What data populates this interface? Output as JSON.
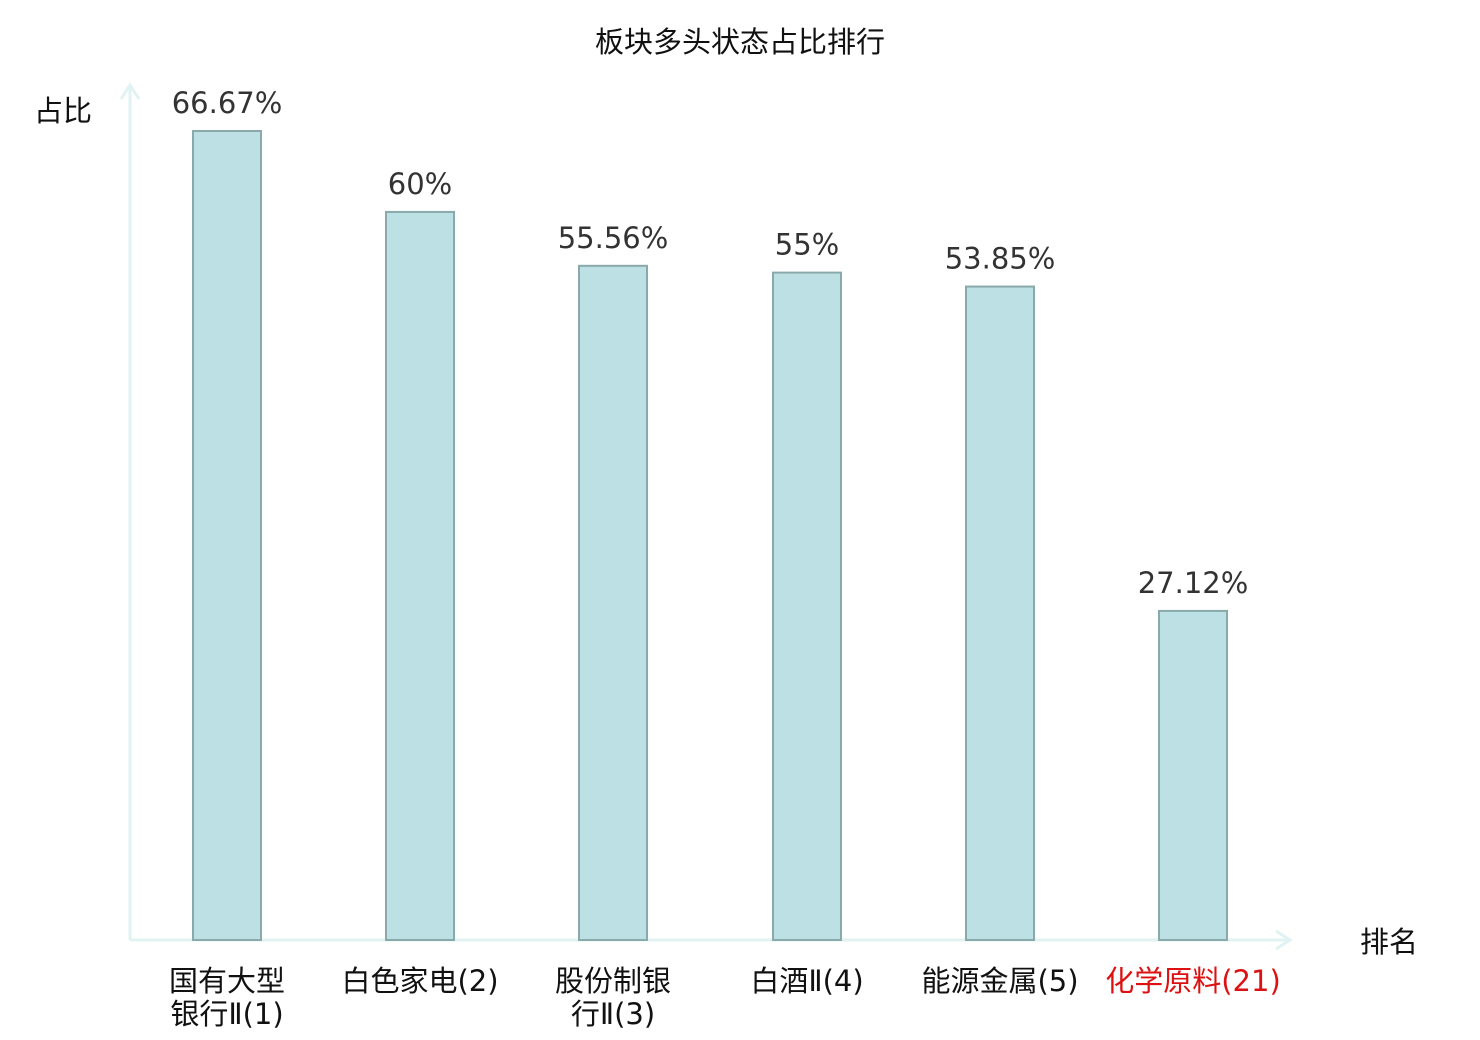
{
  "chart_data": {
    "type": "bar",
    "title": "板块多头状态占比排行",
    "ylabel": "占比",
    "xlabel": "排名",
    "categories": [
      "国有大型银行Ⅱ(1)",
      "白色家电(2)",
      "股份制银行Ⅱ(3)",
      "白酒Ⅱ(4)",
      "能源金属(5)",
      "化学原料(21)"
    ],
    "values": [
      66.67,
      60,
      55.56,
      55,
      53.85,
      27.12
    ],
    "data_labels": [
      "66.67%",
      "60%",
      "55.56%",
      "55%",
      "53.85%",
      "27.12%"
    ],
    "ylim": [
      0,
      70
    ],
    "grid": false,
    "legend": "none",
    "highlight_index": 5,
    "colors": {
      "bar_fill": "#bce0e3",
      "bar_stroke": "#8aa9ab",
      "axis": "#e0f2f1",
      "text": "#333333",
      "label": "#111111",
      "highlight": "#dd1111"
    }
  }
}
